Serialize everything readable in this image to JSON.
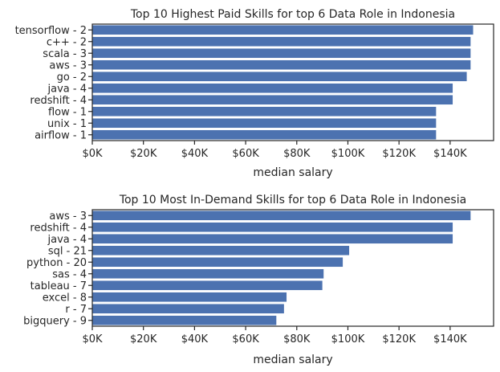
{
  "chart_data": [
    {
      "type": "bar",
      "orientation": "horizontal",
      "title": "Top 10 Highest Paid Skills for top 6 Data Role in Indonesia",
      "xlabel": "median salary",
      "ylabel": "",
      "xlim": [
        0,
        157000
      ],
      "xticks": [
        0,
        20000,
        40000,
        60000,
        80000,
        100000,
        120000,
        140000
      ],
      "xtick_labels": [
        "$0K",
        "$20K",
        "$40K",
        "$60K",
        "$80K",
        "$100K",
        "$120K",
        "$140K"
      ],
      "categories": [
        "tensorflow - 2",
        "c++ - 2",
        "scala - 3",
        "aws - 3",
        "go - 2",
        "java - 4",
        "redshift - 4",
        "flow - 1",
        "unix - 1",
        "airflow - 1"
      ],
      "values": [
        149000,
        148000,
        148000,
        148000,
        146500,
        141000,
        141000,
        134500,
        134500,
        134500
      ],
      "bar_color": "#4c72b0",
      "grid": false,
      "legend": false
    },
    {
      "type": "bar",
      "orientation": "horizontal",
      "title": "Top 10 Most In-Demand Skills for top 6 Data Role in Indonesia",
      "xlabel": "median salary",
      "ylabel": "",
      "xlim": [
        0,
        157000
      ],
      "xticks": [
        0,
        20000,
        40000,
        60000,
        80000,
        100000,
        120000,
        140000
      ],
      "xtick_labels": [
        "$0K",
        "$20K",
        "$40K",
        "$60K",
        "$80K",
        "$100K",
        "$120K",
        "$140K"
      ],
      "categories": [
        "aws - 3",
        "redshift - 4",
        "java - 4",
        "sql - 21",
        "python - 20",
        "sas - 4",
        "tableau - 7",
        "excel - 8",
        "r - 7",
        "bigquery - 9"
      ],
      "values": [
        148000,
        141000,
        141000,
        100500,
        98000,
        90500,
        90000,
        76000,
        75000,
        72000
      ],
      "bar_color": "#4c72b0",
      "grid": false,
      "legend": false
    }
  ]
}
